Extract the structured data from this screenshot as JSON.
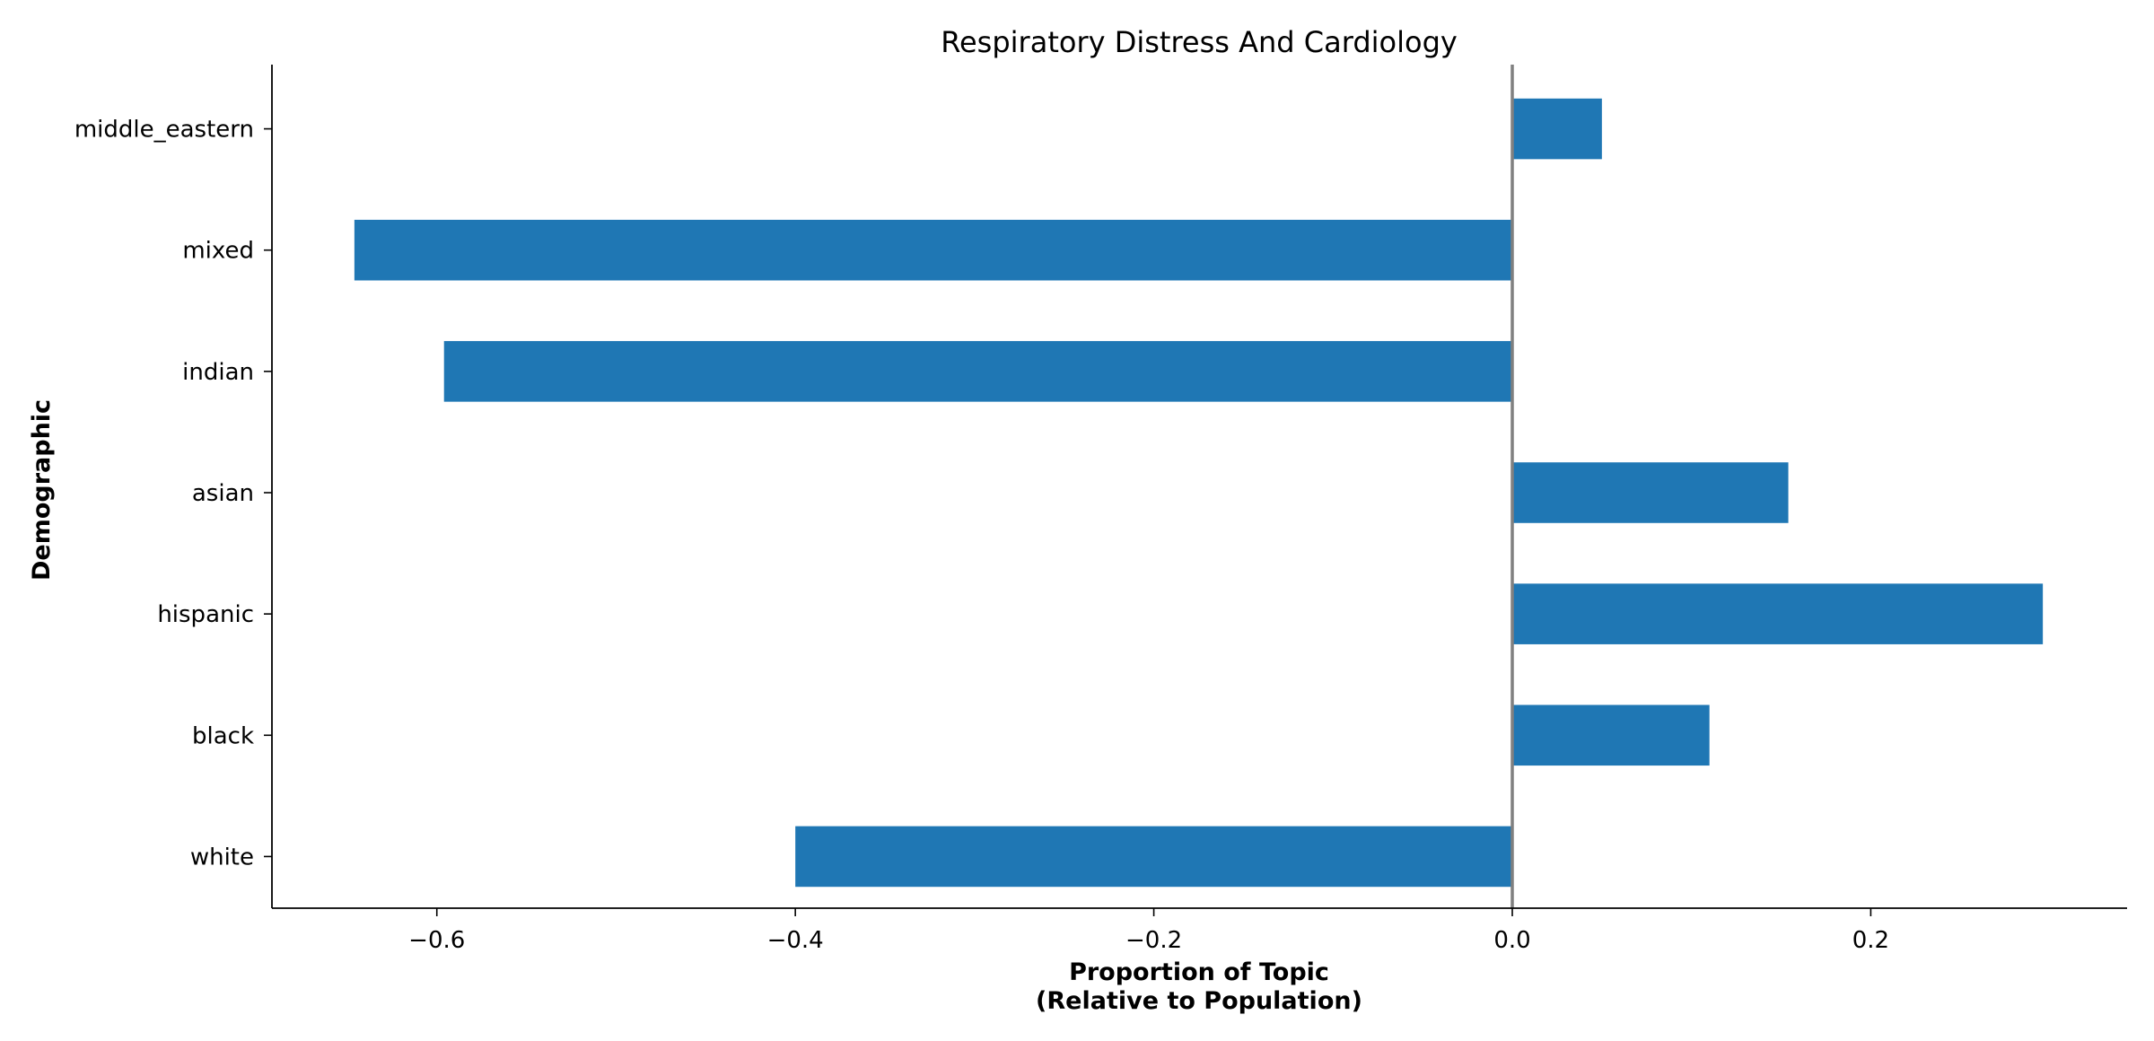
{
  "chart_data": {
    "type": "bar",
    "orientation": "horizontal",
    "title": "Respiratory Distress And Cardiology",
    "xlabel_lines": [
      "Proportion of Topic",
      "(Relative to Population)"
    ],
    "ylabel": "Demographic",
    "categories": [
      "white",
      "black",
      "hispanic",
      "asian",
      "indian",
      "mixed",
      "middle_eastern"
    ],
    "values": [
      -0.4,
      0.11,
      0.296,
      0.154,
      -0.596,
      -0.646,
      0.05
    ],
    "xlim": [
      -0.692,
      0.343
    ],
    "xticks": [
      -0.6,
      -0.4,
      -0.2,
      0.0,
      0.2
    ],
    "xtick_labels": [
      "−0.6",
      "−0.4",
      "−0.2",
      "0.0",
      "0.2"
    ],
    "zero_line": true,
    "grid": false,
    "legend": "none",
    "bar_color": "#1f77b4",
    "zero_line_color": "#808080"
  }
}
